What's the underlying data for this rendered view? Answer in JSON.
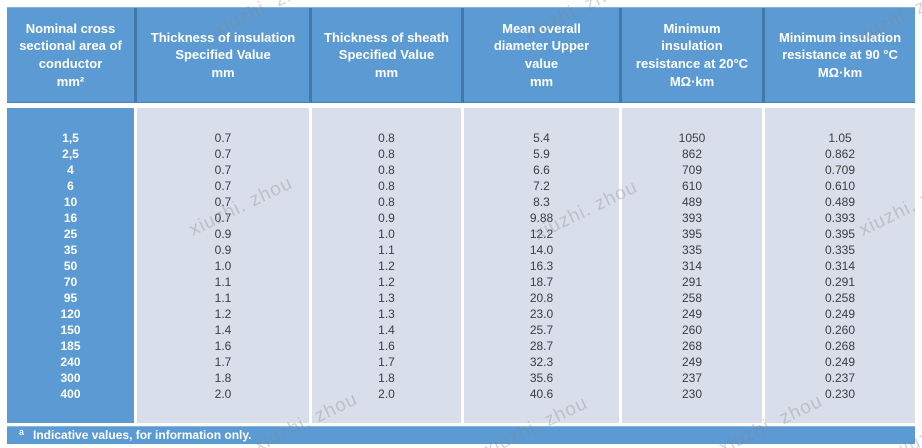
{
  "table": {
    "columns": [
      {
        "key": "area",
        "header": "Nominal cross\nsectional area of\nconductor\nmm²"
      },
      {
        "key": "insulation",
        "header": "Thickness of insulation\nSpecified Value\nmm"
      },
      {
        "key": "sheath",
        "header": "Thickness of sheath\nSpecified Value\nmm"
      },
      {
        "key": "diameter",
        "header": "Mean overall\ndiameter Upper\nvalue\nmm"
      },
      {
        "key": "r20",
        "header": "Minimum\ninsulation\nresistance at 20°C\nMΩ·km"
      },
      {
        "key": "r90",
        "header": "Minimum insulation\nresistance at 90 °C\nMΩ·km"
      }
    ],
    "rows": [
      [
        "1,5",
        "0.7",
        "0.8",
        "5.4",
        "1050",
        "1.05"
      ],
      [
        "2,5",
        "0.7",
        "0.8",
        "5.9",
        "862",
        "0.862"
      ],
      [
        "4",
        "0.7",
        "0.8",
        "6.6",
        "709",
        "0.709"
      ],
      [
        "6",
        "0.7",
        "0.8",
        "7.2",
        "610",
        "0.610"
      ],
      [
        "10",
        "0.7",
        "0.8",
        "8.3",
        "489",
        "0.489"
      ],
      [
        "16",
        "0.7",
        "0.9",
        "9.88",
        "393",
        "0.393"
      ],
      [
        "25",
        "0.9",
        "1.0",
        "12.2",
        "395",
        "0.395"
      ],
      [
        "35",
        "0.9",
        "1.1",
        "14.0",
        "335",
        "0.335"
      ],
      [
        "50",
        "1.0",
        "1.2",
        "16.3",
        "314",
        "0.314"
      ],
      [
        "70",
        "1.1",
        "1.2",
        "18.7",
        "291",
        "0.291"
      ],
      [
        "95",
        "1.1",
        "1.3",
        "20.8",
        "258",
        "0.258"
      ],
      [
        "120",
        "1.2",
        "1.3",
        "23.0",
        "249",
        "0.249"
      ],
      [
        "150",
        "1.4",
        "1.4",
        "25.7",
        "260",
        "0.260"
      ],
      [
        "185",
        "1.6",
        "1.6",
        "28.7",
        "268",
        "0.268"
      ],
      [
        "240",
        "1.7",
        "1.7",
        "32.3",
        "249",
        "0.249"
      ],
      [
        "300",
        "1.8",
        "1.8",
        "35.6",
        "237",
        "0.237"
      ],
      [
        "400",
        "2.0",
        "2.0",
        "40.6",
        "230",
        "0.230"
      ]
    ]
  },
  "footer": {
    "marker": "a",
    "text": "Indicative values, for information only."
  },
  "watermark": {
    "text": "xiuzhi. zhou"
  },
  "colors": {
    "header_blue": "#5b9ad2",
    "cell_light": "#d8dfeb",
    "separator_dark": "#4279ad"
  }
}
